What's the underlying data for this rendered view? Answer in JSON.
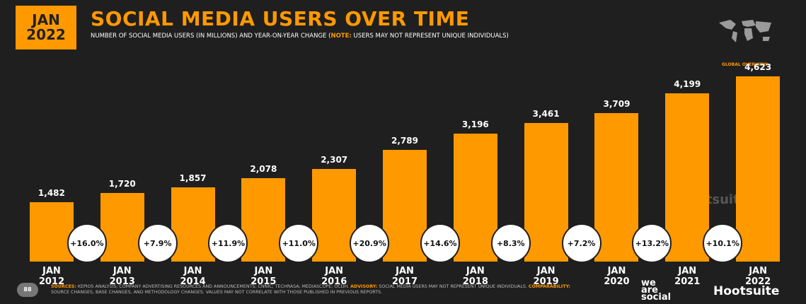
{
  "badge": "JAN 2022",
  "region": "GLOBAL OVERVIEW",
  "chart_data": {
    "type": "bar",
    "title": "SOCIAL MEDIA USERS OVER TIME",
    "subtitle": [
      "NUMBER OF SOCIAL MEDIA USERS (IN MILLIONS) AND YEAR-ON-YEAR CHANGE (",
      "NOTE:",
      " USERS MAY NOT REPRESENT UNIQUE INDIVIDUALS)"
    ],
    "categories": [
      "JAN 2012",
      "JAN 2013",
      "JAN 2014",
      "JAN 2015",
      "JAN 2016",
      "JAN 2017",
      "JAN 2018",
      "JAN 2019",
      "JAN 2020",
      "JAN 2021",
      "JAN 2022"
    ],
    "values": [
      1482,
      1720,
      1857,
      2078,
      2307,
      2789,
      3196,
      3461,
      3709,
      4199,
      4623
    ],
    "value_labels": [
      "1,482",
      "1,720",
      "1,857",
      "2,078",
      "2,307",
      "2,789",
      "3,196",
      "3,461",
      "3,709",
      "4,199",
      "4,623"
    ],
    "changes": [
      16.0,
      7.9,
      11.9,
      11.0,
      20.9,
      14.6,
      8.3,
      7.2,
      13.2,
      10.1
    ],
    "change_labels": [
      "+16.0%",
      "+7.9%",
      "+11.9%",
      "+11.0%",
      "+20.9%",
      "+14.6%",
      "+8.3%",
      "+7.2%",
      "+13.2%",
      "+10.1%"
    ],
    "color": "#ff9900",
    "ylim": [
      0,
      5000
    ]
  },
  "footer": {
    "page": "88",
    "notes": [
      {
        "label": "SOURCES:",
        "text": " KEPIOS ANALYSIS; COMPANY ADVERTISING RESOURCES AND ANNOUNCEMENTS; CNNIC; TECHRASA; MEDIASCOPE; OCDH. "
      },
      {
        "label": "ADVISORY:",
        "text": " SOCIAL MEDIA USERS MAY NOT REPRESENT UNIQUE INDIVIDUALS. "
      },
      {
        "label": "COMPARABILITY:",
        "text": " SOURCE CHANGES, BASE CHANGES, AND METHODOLOGY CHANGES. VALUES MAY NOT CORRELATE WITH THOSE PUBLISHED IN PREVIOUS REPORTS."
      }
    ],
    "logos": [
      "we are social",
      "Hootsuite"
    ]
  }
}
